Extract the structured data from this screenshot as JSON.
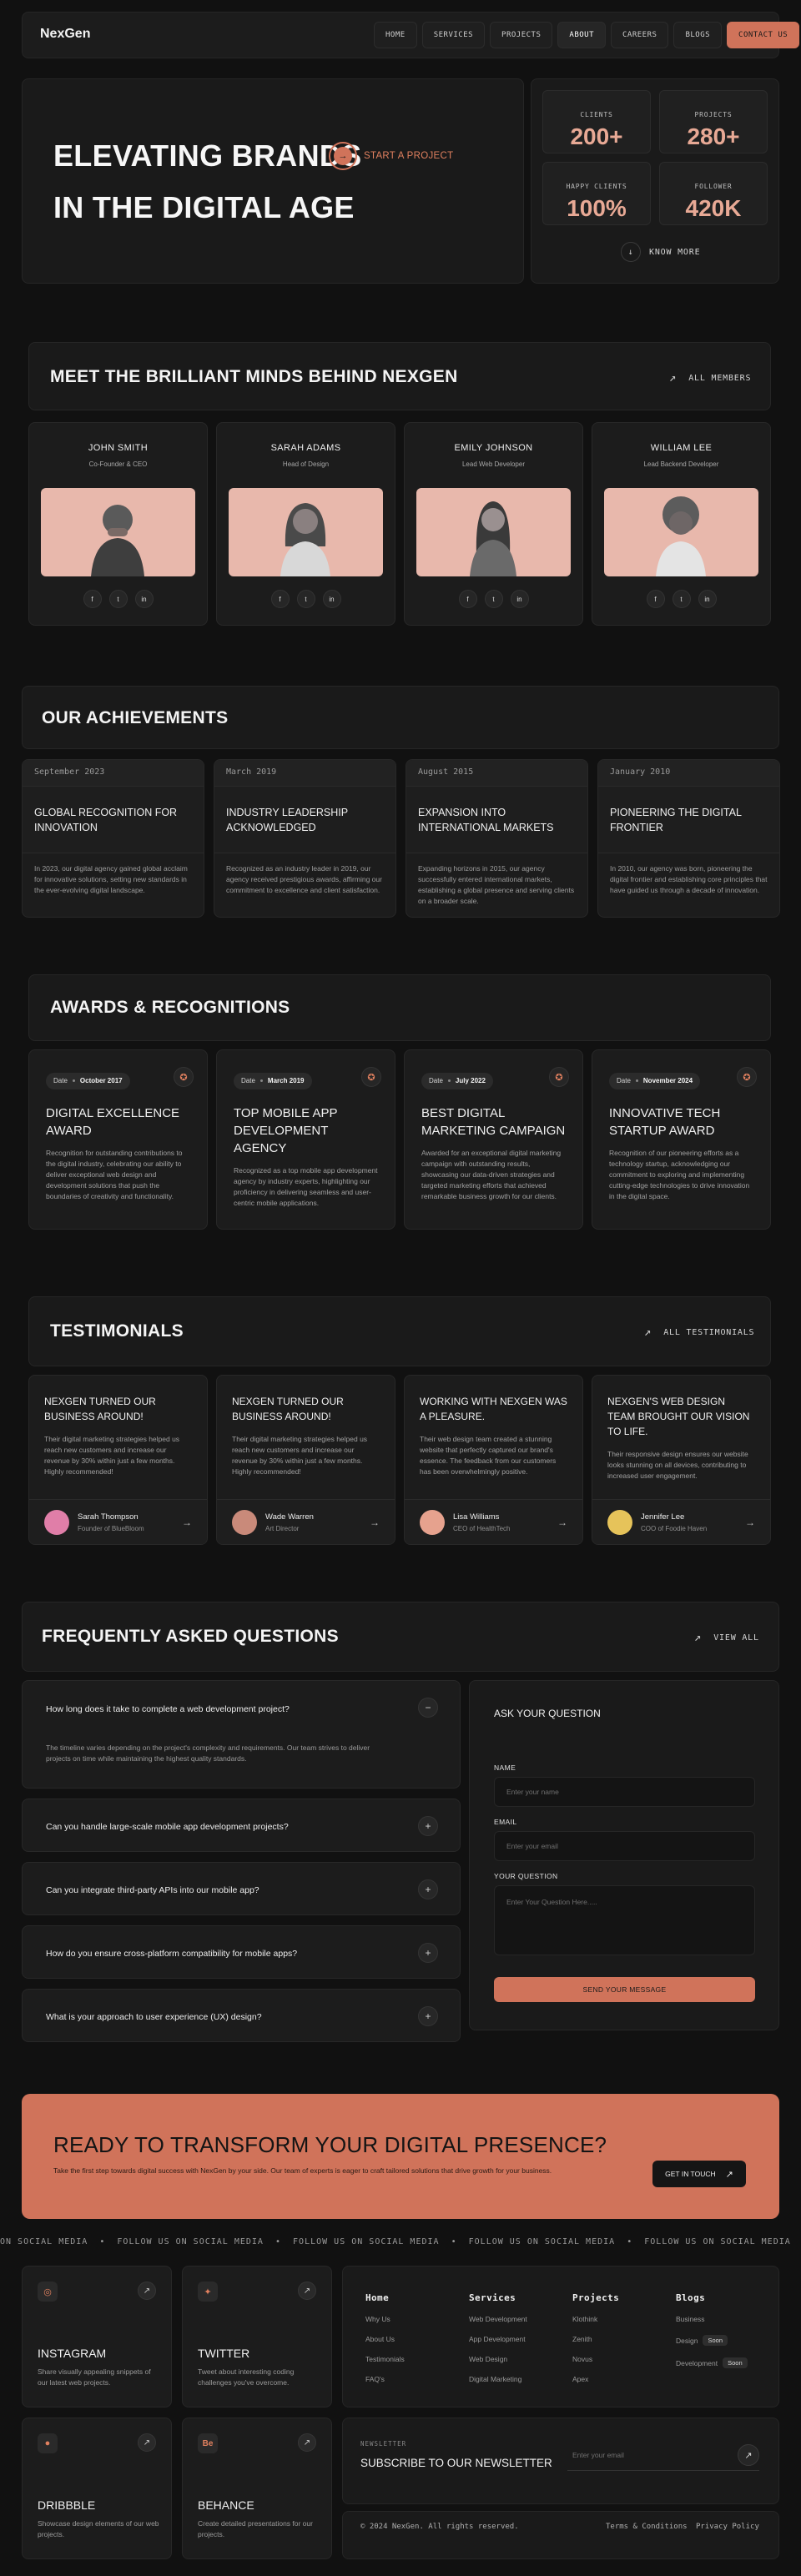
{
  "nav": {
    "logo": "NexGen",
    "links": [
      "HOME",
      "SERVICES",
      "PROJECTS",
      "ABOUT",
      "CAREERS",
      "BLOGS"
    ],
    "active": "ABOUT",
    "cta": "CONTACT US"
  },
  "hero": {
    "line1": "ELEVATING BRANDS",
    "line2": "IN THE DIGITAL AGE",
    "start_label": "START A PROJECT",
    "stats": [
      {
        "label": "CLIENTS",
        "value": "200+"
      },
      {
        "label": "PROJECTS",
        "value": "280+"
      },
      {
        "label": "HAPPY CLIENTS",
        "value": "100%"
      },
      {
        "label": "FOLLOWER",
        "value": "420K"
      }
    ],
    "know_more": "KNOW MORE"
  },
  "team": {
    "title": "MEET THE BRILLIANT MINDS BEHIND NEXGEN",
    "all_label": "ALL MEMBERS",
    "members": [
      {
        "name": "JOHN SMITH",
        "role": "Co-Founder & CEO"
      },
      {
        "name": "SARAH ADAMS",
        "role": "Head of Design"
      },
      {
        "name": "EMILY JOHNSON",
        "role": "Lead Web Developer"
      },
      {
        "name": "WILLIAM LEE",
        "role": "Lead Backend Developer"
      }
    ]
  },
  "achievements": {
    "title": "OUR ACHIEVEMENTS",
    "items": [
      {
        "date": "September 2023",
        "title": "GLOBAL RECOGNITION FOR INNOVATION",
        "desc": "In 2023, our digital agency gained global acclaim for innovative solutions, setting new standards in the ever-evolving digital landscape."
      },
      {
        "date": "March 2019",
        "title": "INDUSTRY LEADERSHIP ACKNOWLEDGED",
        "desc": "Recognized as an industry leader in 2019, our agency received prestigious awards, affirming our commitment to excellence and client satisfaction."
      },
      {
        "date": "August 2015",
        "title": "EXPANSION INTO INTERNATIONAL MARKETS",
        "desc": "Expanding horizons in 2015, our agency successfully entered international markets, establishing a global presence and serving clients on a broader scale."
      },
      {
        "date": "January 2010",
        "title": "PIONEERING THE DIGITAL FRONTIER",
        "desc": "In 2010, our agency was born, pioneering the digital frontier and establishing core principles that have guided us through a decade of innovation."
      }
    ]
  },
  "awards": {
    "title": "AWARDS & RECOGNITIONS",
    "date_label": "Date",
    "items": [
      {
        "date": "October 2017",
        "title": "DIGITAL EXCELLENCE AWARD",
        "desc": "Recognition for outstanding contributions to the digital industry, celebrating our ability to deliver exceptional web design and development solutions that push the boundaries of creativity and functionality."
      },
      {
        "date": "March 2019",
        "title": "TOP MOBILE APP DEVELOPMENT AGENCY",
        "desc": "Recognized as a top mobile app development agency by industry experts, highlighting our proficiency in delivering seamless and user-centric mobile applications."
      },
      {
        "date": "July 2022",
        "title": "BEST DIGITAL MARKETING CAMPAIGN",
        "desc": "Awarded for an exceptional digital marketing campaign with outstanding results, showcasing our data-driven strategies and targeted marketing efforts that achieved remarkable business growth for our clients."
      },
      {
        "date": "November 2024",
        "title": "INNOVATIVE TECH STARTUP AWARD",
        "desc": "Recognition of our pioneering efforts as a technology startup, acknowledging our commitment to exploring and implementing cutting-edge technologies to drive innovation in the digital space."
      }
    ]
  },
  "testimonials": {
    "title": "TESTIMONIALS",
    "all_label": "ALL TESTIMONIALS",
    "items": [
      {
        "title": "NEXGEN TURNED OUR BUSINESS AROUND!",
        "body": "Their digital marketing strategies helped us reach new customers and increase our revenue by 30% within just a few months. Highly recommended!",
        "name": "Sarah Thompson",
        "role": "Founder of BlueBloom"
      },
      {
        "title": "NEXGEN TURNED OUR BUSINESS AROUND!",
        "body": "Their digital marketing strategies helped us reach new customers and increase our revenue by 30% within just a few months. Highly recommended!",
        "name": "Wade Warren",
        "role": "Art Director"
      },
      {
        "title": "WORKING WITH NEXGEN WAS A PLEASURE.",
        "body": "Their web design team created a stunning website that perfectly captured our brand's essence. The feedback from our customers has been overwhelmingly positive.",
        "name": "Lisa Williams",
        "role": "CEO of HealthTech"
      },
      {
        "title": "NEXGEN'S WEB DESIGN TEAM BROUGHT OUR VISION TO LIFE.",
        "body": "Their responsive design ensures our website looks stunning on all devices, contributing to increased user engagement.",
        "name": "Jennifer Lee",
        "role": "COO of Foodie Haven"
      }
    ]
  },
  "faq": {
    "title": "FREQUENTLY ASKED QUESTIONS",
    "all_label": "VIEW ALL",
    "items": [
      {
        "q": "How long does it take to complete a web development project?",
        "a": "The timeline varies depending on the project's complexity and requirements. Our team strives to deliver projects on time while maintaining the highest quality standards."
      },
      {
        "q": "Can you handle large-scale mobile app development projects?"
      },
      {
        "q": "Can you integrate third-party APIs into our mobile app?"
      },
      {
        "q": "How do you ensure cross-platform compatibility for mobile apps?"
      },
      {
        "q": "What is your approach to user experience (UX) design?"
      }
    ],
    "form": {
      "title": "ASK YOUR QUESTION",
      "name_label": "NAME",
      "name_ph": "Enter your name",
      "email_label": "EMAIL",
      "email_ph": "Enter your email",
      "q_label": "YOUR QUESTION",
      "q_ph": "Enter Your Question Here.....",
      "submit": "SEND YOUR MESSAGE"
    }
  },
  "cta": {
    "title": "READY TO TRANSFORM YOUR DIGITAL PRESENCE?",
    "body": "Take the first step towards digital success with NexGen by your side. Our team of experts is eager to craft tailored solutions that drive growth for your business.",
    "button": "GET IN TOUCH"
  },
  "marquee": "ON SOCIAL MEDIA  •  FOLLOW US ON SOCIAL MEDIA  •  FOLLOW US ON SOCIAL MEDIA  •  FOLLOW US ON SOCIAL MEDIA  •  FOLLOW US ON SOCIAL MEDIA  •  FOLLOW US ON SOCIAL MEDIA",
  "socials": [
    {
      "name": "INSTAGRAM",
      "desc": "Share visually appealing snippets of our latest web projects.",
      "icon": "instagram-icon"
    },
    {
      "name": "TWITTER",
      "desc": "Tweet about interesting coding challenges you've overcome.",
      "icon": "twitter-icon"
    },
    {
      "name": "DRIBBBLE",
      "desc": "Showcase design elements of our web projects.",
      "icon": "dribbble-icon"
    },
    {
      "name": "BEHANCE",
      "desc": "Create detailed presentations for our projects.",
      "icon": "behance-icon"
    }
  ],
  "footer": {
    "cols": [
      {
        "head": "Home",
        "items": [
          "Why Us",
          "About Us",
          "Testimonials",
          "FAQ's"
        ]
      },
      {
        "head": "Services",
        "items": [
          "Web Development",
          "App Development",
          "Web Design",
          "Digital Marketing"
        ]
      },
      {
        "head": "Projects",
        "items": [
          "Klothink",
          "Zenith",
          "Novus",
          "Apex"
        ]
      },
      {
        "head": "Blogs",
        "items": [
          "Business",
          "Design",
          "Development"
        ],
        "pills": [
          "",
          "Soon",
          "Soon"
        ]
      }
    ],
    "newsletter_label": "NEWSLETTER",
    "newsletter_title": "SUBSCRIBE TO OUR NEWSLETTER",
    "email_ph": "Enter your email",
    "copyright": "© 2024 NexGen. All rights reserved.",
    "terms": "Terms & Conditions",
    "privacy": "Privacy Policy"
  },
  "colors": {
    "accent": "#d0735a",
    "bg": "#111111",
    "panel": "#1a1a1a",
    "stat": "#e8a995"
  }
}
